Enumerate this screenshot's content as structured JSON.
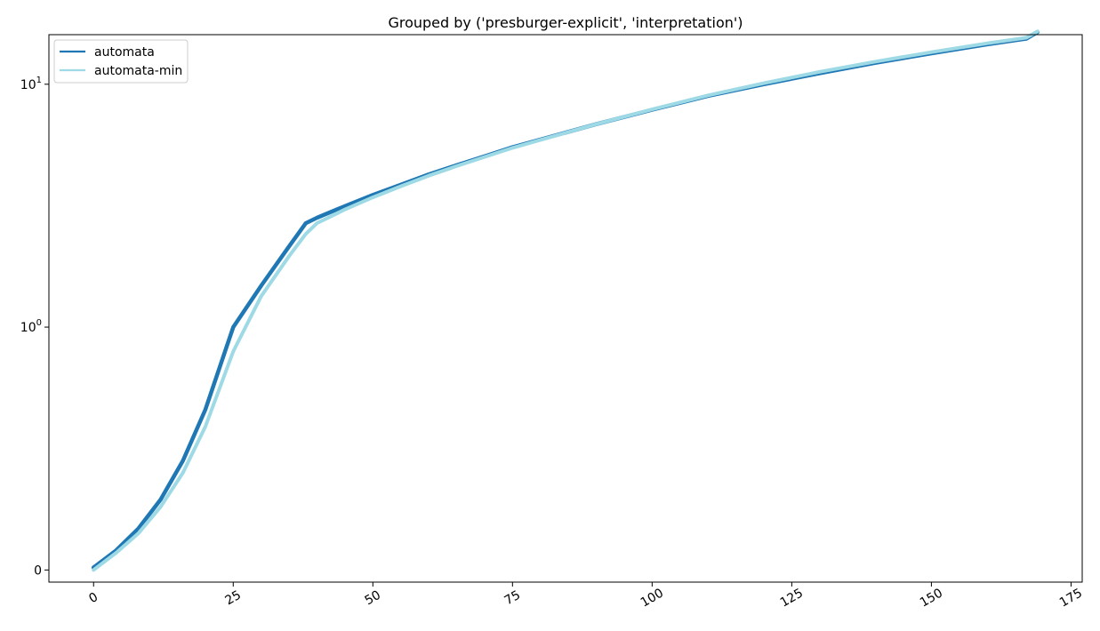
{
  "chart_data": {
    "type": "line",
    "title": "Grouped by ('presburger-explicit', 'interpretation')",
    "xlabel": "",
    "ylabel": "",
    "xlim": [
      -8,
      177
    ],
    "x_ticks": [
      0,
      25,
      50,
      75,
      100,
      125,
      150,
      175
    ],
    "x_tick_labels": [
      "0",
      "25",
      "50",
      "75",
      "100",
      "125",
      "150",
      "175"
    ],
    "y_scale": "symlog",
    "y_ticks": [
      {
        "value": 0,
        "base": "0",
        "exp": ""
      },
      {
        "value": 1,
        "base": "10",
        "exp": "0"
      },
      {
        "value": 10,
        "base": "10",
        "exp": "1"
      }
    ],
    "ylim": [
      -0.05,
      16
    ],
    "grid": false,
    "legend_position": "upper-left",
    "series": [
      {
        "name": "automata",
        "color": "#1f77b4",
        "x": [
          0,
          4,
          8,
          12,
          16,
          20,
          25,
          30,
          35,
          38,
          40,
          45,
          50,
          55,
          60,
          65,
          70,
          75,
          80,
          90,
          100,
          110,
          120,
          130,
          140,
          150,
          160,
          167,
          169
        ],
        "y": [
          0.01,
          0.08,
          0.17,
          0.29,
          0.45,
          0.66,
          1.0,
          1.48,
          2.15,
          2.68,
          2.82,
          3.15,
          3.5,
          3.86,
          4.25,
          4.64,
          5.05,
          5.5,
          5.92,
          6.85,
          7.85,
          8.95,
          10.0,
          11.1,
          12.25,
          13.4,
          14.6,
          15.4,
          16.4
        ]
      },
      {
        "name": "automata-min",
        "color": "#9edae5",
        "x": [
          0,
          4,
          8,
          12,
          16,
          20,
          25,
          30,
          35,
          38,
          40,
          45,
          50,
          55,
          60,
          65,
          70,
          75,
          80,
          90,
          100,
          110,
          120,
          130,
          140,
          150,
          160,
          167,
          169
        ],
        "y": [
          0.0,
          0.07,
          0.15,
          0.26,
          0.4,
          0.59,
          0.9,
          1.34,
          1.96,
          2.42,
          2.68,
          3.05,
          3.42,
          3.8,
          4.2,
          4.6,
          5.02,
          5.47,
          5.9,
          6.85,
          7.88,
          9.0,
          10.1,
          11.25,
          12.4,
          13.55,
          14.75,
          15.55,
          16.5
        ]
      }
    ]
  }
}
